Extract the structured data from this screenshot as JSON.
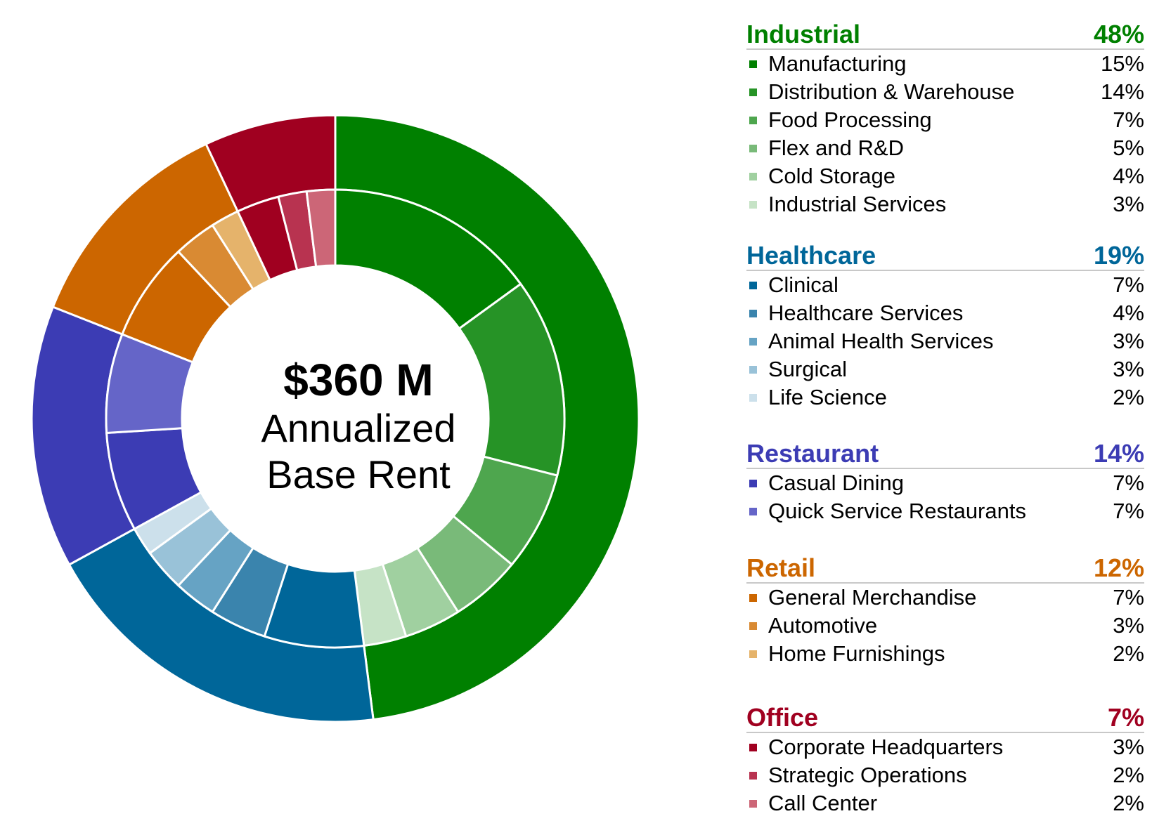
{
  "center": {
    "amount": "$360 M",
    "line1": "Annualized",
    "line2": "Base Rent"
  },
  "chart_data": {
    "type": "pie",
    "subtype": "nested-donut",
    "groups": [
      {
        "name": "Industrial",
        "pct_label": "48%",
        "value": 48,
        "color": "#008000",
        "items": [
          {
            "label": "Manufacturing",
            "pct_label": "15%",
            "value": 15,
            "color": "#008000"
          },
          {
            "label": "Distribution & Warehouse",
            "pct_label": "14%",
            "value": 14,
            "color": "#269326"
          },
          {
            "label": "Food Processing",
            "pct_label": "7%",
            "value": 7,
            "color": "#4ea64e"
          },
          {
            "label": "Flex and R&D",
            "pct_label": "5%",
            "value": 5,
            "color": "#79ba79"
          },
          {
            "label": "Cold Storage",
            "pct_label": "4%",
            "value": 4,
            "color": "#a0d0a0"
          },
          {
            "label": "Industrial Services",
            "pct_label": "3%",
            "value": 3,
            "color": "#c6e3c6"
          }
        ]
      },
      {
        "name": "Healthcare",
        "pct_label": "19%",
        "value": 19,
        "color": "#006699",
        "items": [
          {
            "label": "Clinical",
            "pct_label": "7%",
            "value": 7,
            "color": "#006699"
          },
          {
            "label": "Healthcare Services",
            "pct_label": "4%",
            "value": 4,
            "color": "#3a84ad"
          },
          {
            "label": "Animal Health Services",
            "pct_label": "3%",
            "value": 3,
            "color": "#66a3c4"
          },
          {
            "label": "Surgical",
            "pct_label": "3%",
            "value": 3,
            "color": "#99c2d8"
          },
          {
            "label": "Life Science",
            "pct_label": "2%",
            "value": 2,
            "color": "#cce0eb"
          }
        ]
      },
      {
        "name": "Restaurant",
        "pct_label": "14%",
        "value": 14,
        "color": "#3c3cb4",
        "items": [
          {
            "label": "Casual Dining",
            "pct_label": "7%",
            "value": 7,
            "color": "#3c3cb4"
          },
          {
            "label": "Quick Service Restaurants",
            "pct_label": "7%",
            "value": 7,
            "color": "#6565c8"
          }
        ]
      },
      {
        "name": "Retail",
        "pct_label": "12%",
        "value": 12,
        "color": "#cc6600",
        "items": [
          {
            "label": "General Merchandise",
            "pct_label": "7%",
            "value": 7,
            "color": "#cc6600"
          },
          {
            "label": "Automotive",
            "pct_label": "3%",
            "value": 3,
            "color": "#d98a33"
          },
          {
            "label": "Home Furnishings",
            "pct_label": "2%",
            "value": 2,
            "color": "#e5b36b"
          }
        ]
      },
      {
        "name": "Office",
        "pct_label": "7%",
        "value": 7,
        "color": "#a00020",
        "items": [
          {
            "label": "Corporate Headquarters",
            "pct_label": "3%",
            "value": 3,
            "color": "#a00020"
          },
          {
            "label": "Strategic Operations",
            "pct_label": "2%",
            "value": 2,
            "color": "#b83350"
          },
          {
            "label": "Call Center",
            "pct_label": "2%",
            "value": 2,
            "color": "#cc6677"
          }
        ]
      }
    ]
  }
}
